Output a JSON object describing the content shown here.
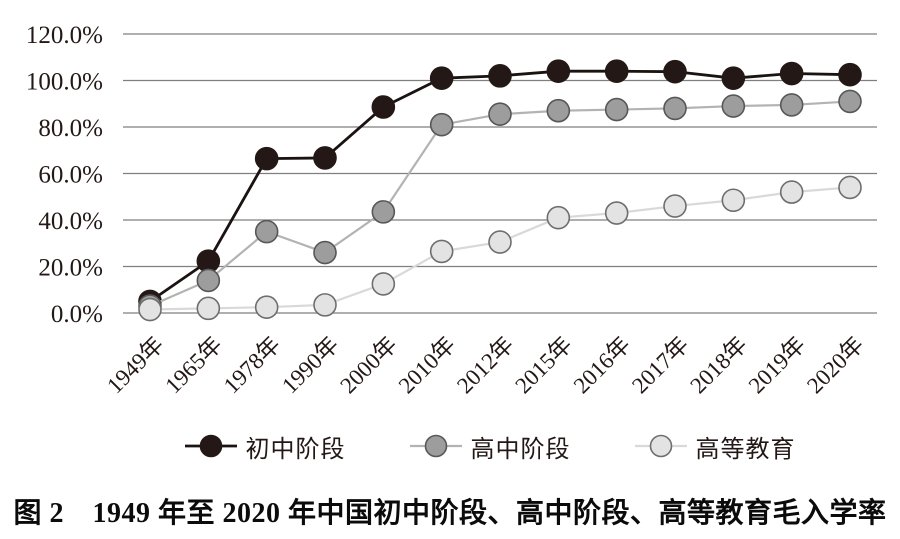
{
  "figure": {
    "caption": "图 2　1949 年至 2020 年中国初中阶段、高中阶段、高等教育毛入学率"
  },
  "chart_data": {
    "type": "line",
    "title": "",
    "categories": [
      "1949年",
      "1965年",
      "1978年",
      "1990年",
      "2000年",
      "2010年",
      "2012年",
      "2015年",
      "2016年",
      "2017年",
      "2018年",
      "2019年",
      "2020年"
    ],
    "series": [
      {
        "name": "初中阶段",
        "values": [
          5.0,
          22.3,
          66.4,
          66.7,
          88.6,
          101.0,
          102.0,
          104.0,
          104.0,
          103.8,
          101.0,
          103.0,
          102.5
        ],
        "line_color": "#1a1311",
        "line_width": 2.8,
        "marker_fill": "#231815",
        "marker_stroke": "#231815"
      },
      {
        "name": "高中阶段",
        "values": [
          3.0,
          14.0,
          35.0,
          26.0,
          43.5,
          81.0,
          85.5,
          87.0,
          87.5,
          88.0,
          89.0,
          89.5,
          91.0
        ],
        "line_color": "#b3b3b3",
        "line_width": 2.2,
        "marker_fill": "#9d9d9e",
        "marker_stroke": "#585757"
      },
      {
        "name": "高等教育",
        "values": [
          1.5,
          2.0,
          2.5,
          3.5,
          12.5,
          26.5,
          30.5,
          41.0,
          43.0,
          46.0,
          48.5,
          52.0,
          54.0
        ],
        "line_color": "#d9d9d9",
        "line_width": 2.2,
        "marker_fill": "#e3e3e3",
        "marker_stroke": "#6e6e6e"
      }
    ],
    "ylabel": "",
    "xlabel": "",
    "ylim": [
      0,
      120
    ],
    "ytick_step": 20,
    "ytick_labels": [
      "0.0%",
      "20.0%",
      "40.0%",
      "60.0%",
      "80.0%",
      "100.0%",
      "120.0%"
    ],
    "grid": "horizontal-only",
    "gridline_color": "#7f7f7f",
    "axis_text_color": "#231815",
    "legend_position": "bottom",
    "marker_radius": 11
  }
}
